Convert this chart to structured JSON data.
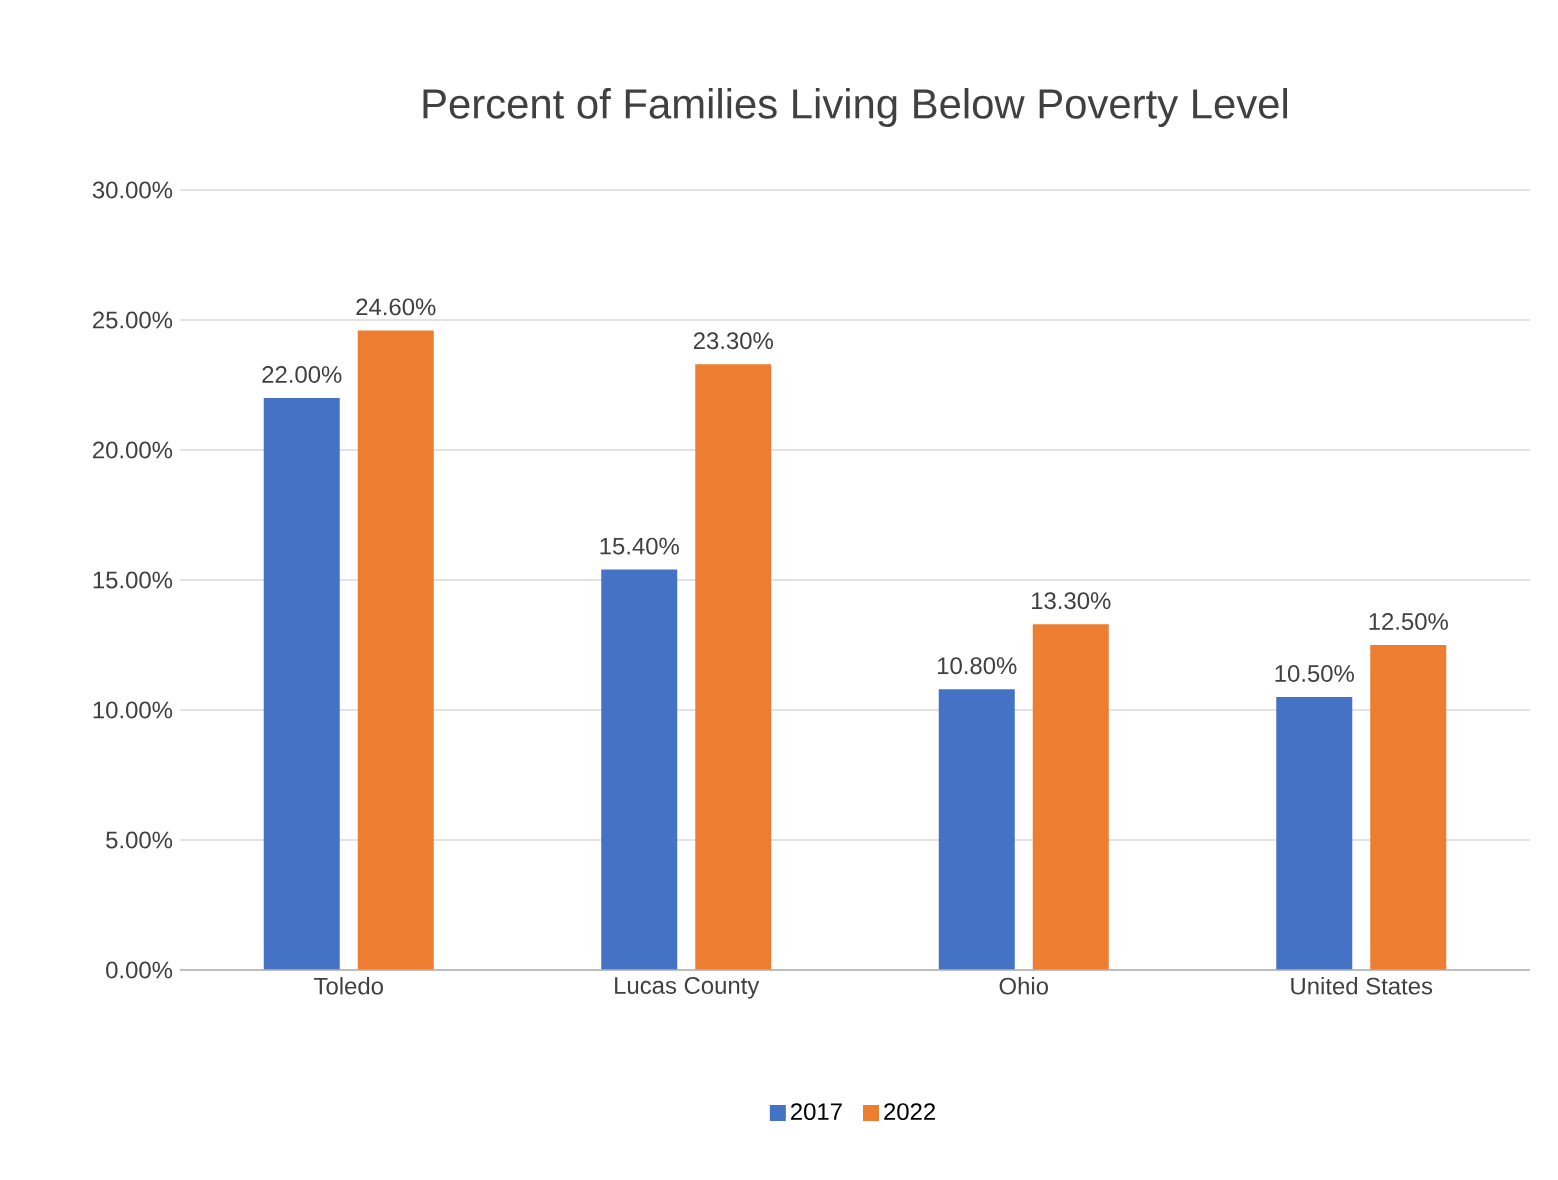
{
  "chart_data": {
    "type": "bar",
    "title": "Percent of Families Living Below Poverty Level",
    "categories": [
      "Toledo",
      "Lucas County",
      "Ohio",
      "United States"
    ],
    "series": [
      {
        "name": "2017",
        "color": "#4472c4",
        "values": [
          22.0,
          15.4,
          10.8,
          10.5
        ],
        "value_labels": [
          "22.00%",
          "15.40%",
          "10.80%",
          "10.50%"
        ]
      },
      {
        "name": "2022",
        "color": "#ed7d31",
        "values": [
          24.6,
          23.3,
          13.3,
          12.5
        ],
        "value_labels": [
          "24.60%",
          "23.30%",
          "13.30%",
          "12.50%"
        ]
      }
    ],
    "ylim": [
      0,
      30
    ],
    "yticks": [
      {
        "value": 0,
        "label": "0.00%"
      },
      {
        "value": 5,
        "label": "5.00%"
      },
      {
        "value": 10,
        "label": "10.00%"
      },
      {
        "value": 15,
        "label": "15.00%"
      },
      {
        "value": 20,
        "label": "20.00%"
      },
      {
        "value": 25,
        "label": "25.00%"
      },
      {
        "value": 30,
        "label": "30.00%"
      }
    ],
    "grid": "y",
    "legend": "bottom"
  }
}
